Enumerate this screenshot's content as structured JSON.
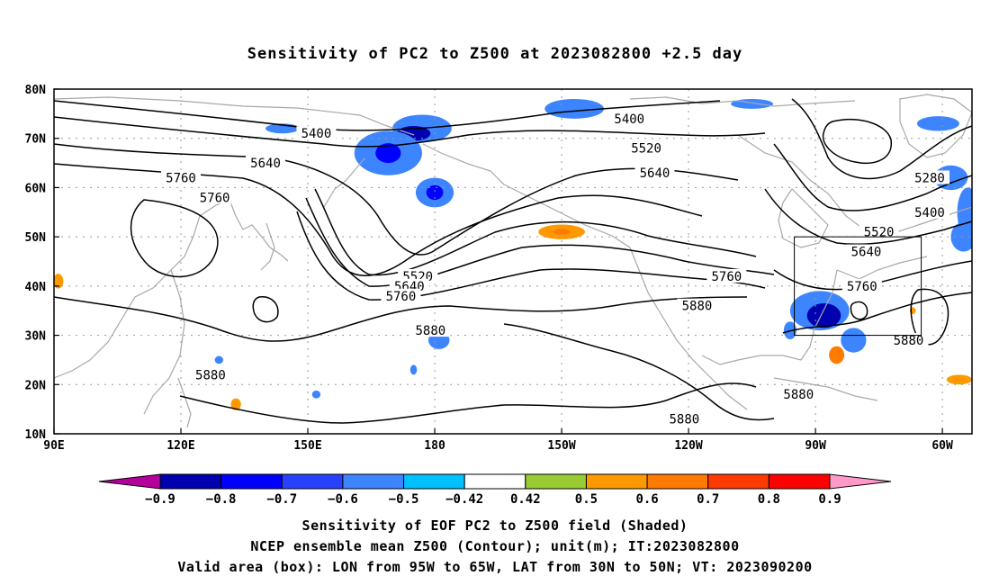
{
  "title": "Sensitivity of PC2 to Z500 at 2023082800 +2.5 day",
  "map": {
    "lon_range": [
      90,
      307
    ],
    "lat_range": [
      10,
      80
    ],
    "lon_ticks": [
      {
        "lon": 90,
        "label": "90E"
      },
      {
        "lon": 120,
        "label": "120E"
      },
      {
        "lon": 150,
        "label": "150E"
      },
      {
        "lon": 180,
        "label": "180"
      },
      {
        "lon": 210,
        "label": "150W"
      },
      {
        "lon": 240,
        "label": "120W"
      },
      {
        "lon": 270,
        "label": "90W"
      },
      {
        "lon": 300,
        "label": "60W"
      }
    ],
    "lat_ticks": [
      {
        "lat": 10,
        "label": "10N"
      },
      {
        "lat": 20,
        "label": "20N"
      },
      {
        "lat": 30,
        "label": "30N"
      },
      {
        "lat": 40,
        "label": "40N"
      },
      {
        "lat": 50,
        "label": "50N"
      },
      {
        "lat": 60,
        "label": "60N"
      },
      {
        "lat": 70,
        "label": "70N"
      },
      {
        "lat": 80,
        "label": "80N"
      }
    ],
    "grid": true,
    "valid_box": {
      "lon_min": 265,
      "lon_max": 295,
      "lat_min": 30,
      "lat_max": 50
    },
    "contour_labels": [
      {
        "text": "5400",
        "lon": 152,
        "lat": 71
      },
      {
        "text": "5640",
        "lon": 140,
        "lat": 65
      },
      {
        "text": "5760",
        "lon": 120,
        "lat": 62
      },
      {
        "text": "5760",
        "lon": 128,
        "lat": 58
      },
      {
        "text": "5400",
        "lon": 226,
        "lat": 74
      },
      {
        "text": "5520",
        "lon": 230,
        "lat": 68
      },
      {
        "text": "5640",
        "lon": 232,
        "lat": 63
      },
      {
        "text": "5280",
        "lon": 297,
        "lat": 62
      },
      {
        "text": "5400",
        "lon": 297,
        "lat": 55
      },
      {
        "text": "5520",
        "lon": 285,
        "lat": 51
      },
      {
        "text": "5640",
        "lon": 282,
        "lat": 47
      },
      {
        "text": "5760",
        "lon": 249,
        "lat": 42
      },
      {
        "text": "5760",
        "lon": 281,
        "lat": 40
      },
      {
        "text": "5520",
        "lon": 176,
        "lat": 42
      },
      {
        "text": "5640",
        "lon": 174,
        "lat": 40
      },
      {
        "text": "5760",
        "lon": 172,
        "lat": 38
      },
      {
        "text": "5880",
        "lon": 242,
        "lat": 36
      },
      {
        "text": "5880",
        "lon": 179,
        "lat": 31
      },
      {
        "text": "5880",
        "lon": 292,
        "lat": 29
      },
      {
        "text": "5880",
        "lon": 127,
        "lat": 22
      },
      {
        "text": "5880",
        "lon": 266,
        "lat": 18
      },
      {
        "text": "5880",
        "lon": 239,
        "lat": 13
      }
    ],
    "shaded_patches": [
      {
        "lon": 144,
        "lat": 72,
        "rx": 4,
        "ry": 1.0,
        "value": -0.5
      },
      {
        "lon": 177,
        "lat": 72,
        "rx": 7,
        "ry": 2.8,
        "value": -0.5
      },
      {
        "lon": 175,
        "lat": 71,
        "rx": 4,
        "ry": 1.5,
        "value": -0.8
      },
      {
        "lon": 169,
        "lat": 67,
        "rx": 8,
        "ry": 4.5,
        "value": -0.5
      },
      {
        "lon": 169,
        "lat": 67,
        "rx": 3,
        "ry": 2.0,
        "value": -0.7
      },
      {
        "lon": 180,
        "lat": 59,
        "rx": 4.5,
        "ry": 3.0,
        "value": -0.5
      },
      {
        "lon": 180,
        "lat": 59,
        "rx": 2,
        "ry": 1.5,
        "value": -0.7
      },
      {
        "lon": 213,
        "lat": 76,
        "rx": 7,
        "ry": 2.0,
        "value": -0.5
      },
      {
        "lon": 255,
        "lat": 77,
        "rx": 5,
        "ry": 1.0,
        "value": -0.5
      },
      {
        "lon": 299,
        "lat": 73,
        "rx": 5,
        "ry": 1.5,
        "value": -0.5
      },
      {
        "lon": 302,
        "lat": 62,
        "rx": 4,
        "ry": 2.5,
        "value": -0.5
      },
      {
        "lon": 306,
        "lat": 55,
        "rx": 2.5,
        "ry": 5.0,
        "value": -0.5
      },
      {
        "lon": 305,
        "lat": 50,
        "rx": 3,
        "ry": 3.0,
        "value": -0.5
      },
      {
        "lon": 271,
        "lat": 35,
        "rx": 7,
        "ry": 4.0,
        "value": -0.5
      },
      {
        "lon": 272,
        "lat": 34,
        "rx": 4,
        "ry": 2.5,
        "value": -0.8
      },
      {
        "lon": 279,
        "lat": 29,
        "rx": 3,
        "ry": 2.5,
        "value": -0.5
      },
      {
        "lon": 264,
        "lat": 31,
        "rx": 1.5,
        "ry": 1.8,
        "value": -0.5
      },
      {
        "lon": 181,
        "lat": 29,
        "rx": 2.5,
        "ry": 1.8,
        "value": -0.5
      },
      {
        "lon": 129,
        "lat": 25,
        "rx": 1,
        "ry": 0.8,
        "value": -0.5
      },
      {
        "lon": 175,
        "lat": 23,
        "rx": 0.8,
        "ry": 1.0,
        "value": -0.5
      },
      {
        "lon": 152,
        "lat": 18,
        "rx": 1.0,
        "ry": 0.8,
        "value": -0.5
      },
      {
        "lon": 210,
        "lat": 51,
        "rx": 5.5,
        "ry": 1.5,
        "value": 0.5
      },
      {
        "lon": 210,
        "lat": 51,
        "rx": 2,
        "ry": 0.6,
        "value": 0.6
      },
      {
        "lon": 133,
        "lat": 16,
        "rx": 1.2,
        "ry": 1.2,
        "value": 0.5
      },
      {
        "lon": 91,
        "lat": 41,
        "rx": 1.2,
        "ry": 1.5,
        "value": 0.5
      },
      {
        "lon": 275,
        "lat": 26,
        "rx": 1.8,
        "ry": 1.8,
        "value": 0.6
      },
      {
        "lon": 304,
        "lat": 21,
        "rx": 3,
        "ry": 1.0,
        "value": 0.5
      },
      {
        "lon": 293,
        "lat": 35,
        "rx": 0.7,
        "ry": 0.7,
        "value": 0.5
      }
    ]
  },
  "colorbar": {
    "levels": [
      "-0.9",
      "-0.8",
      "-0.7",
      "-0.6",
      "-0.5",
      "-0.42",
      "0.42",
      "0.5",
      "0.6",
      "0.7",
      "0.8",
      "0.9"
    ],
    "colors": [
      "#b5009e",
      "#0000b0",
      "#0000ff",
      "#2a40ff",
      "#3d85ff",
      "#00c0ff",
      "#ffffff",
      "#99cc33",
      "#ff9900",
      "#ff7a00",
      "#ff3a00",
      "#ff0000",
      "#ff99c8"
    ]
  },
  "captions": [
    "Sensitivity of EOF PC2 to Z500 field (Shaded)",
    "NCEP ensemble mean Z500 (Contour); unit(m); IT:2023082800",
    "Valid area (box): LON from 95W to 65W, LAT from 30N to 50N; VT: 2023090200"
  ]
}
